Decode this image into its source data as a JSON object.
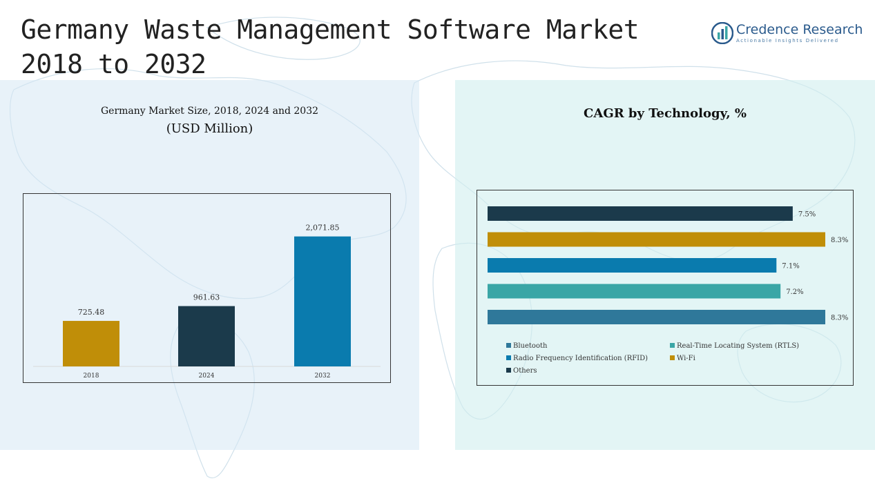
{
  "page": {
    "title": "Germany Waste Management Software Market 2018 to 2032"
  },
  "logo": {
    "name": "Credence Research",
    "tagline": "Actionable Insights Delivered",
    "brand_color": "#2a5a8c"
  },
  "chart_data": [
    {
      "type": "bar",
      "title": "Germany Market Size, 2018, 2024 and 2032",
      "subtitle": "(USD Million)",
      "categories": [
        "2018",
        "2024",
        "2032"
      ],
      "values": [
        725.48,
        961.63,
        2071.85
      ],
      "value_labels": [
        "725.48",
        "961.63",
        "2,071.85"
      ],
      "colors": [
        "#c08e08",
        "#1b3a4b",
        "#0a7bae"
      ],
      "ylim": [
        0,
        2200
      ],
      "grid": false
    },
    {
      "type": "bar",
      "orientation": "horizontal",
      "title": "CAGR by Technology, %",
      "series": [
        {
          "name": "Others",
          "value": 7.5,
          "label": "7.5%",
          "color": "#1b3a4b"
        },
        {
          "name": "Wi-Fi",
          "value": 8.3,
          "label": "8.3%",
          "color": "#c08e08"
        },
        {
          "name": "Radio Frequency Identification (RFID)",
          "value": 7.1,
          "label": "7.1%",
          "color": "#0a7bae"
        },
        {
          "name": "Real-Time Locating System (RTLS)",
          "value": 7.2,
          "label": "7.2%",
          "color": "#3aa6a6"
        },
        {
          "name": "Bluetooth",
          "value": 8.3,
          "label": "8.3%",
          "color": "#2f789a"
        }
      ],
      "legend": {
        "placement": "bottom",
        "order": [
          "Bluetooth",
          "Real-Time Locating System (RTLS)",
          "Radio Frequency Identification (RFID)",
          "Wi-Fi",
          "Others"
        ]
      },
      "xlim": [
        0,
        8.3
      ],
      "grid": false
    }
  ]
}
